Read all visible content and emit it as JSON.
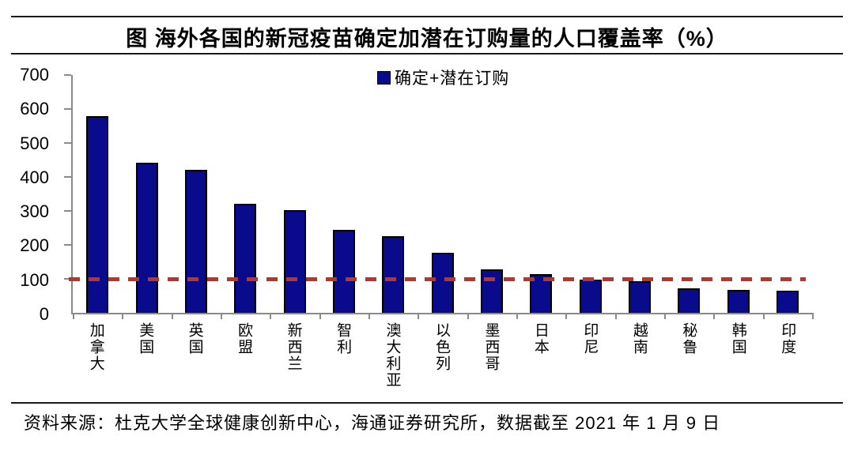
{
  "title": "图 海外各国的新冠疫苗确定加潜在订购量的人口覆盖率（%）",
  "legend": {
    "label": "确定+潜在订购"
  },
  "footer": {
    "source_note": "资料来源：杜克大学全球健康创新中心，海通证券研究所，数据截至 2021 年 1 月 9 日"
  },
  "colors": {
    "bar_fill": "#0a0a8c",
    "bar_border": "#000000",
    "reference_line": "#b5362b",
    "axis": "#8a8a8a",
    "rule": "#1a1a1a"
  },
  "chart_data": {
    "type": "bar",
    "title": "图 海外各国的新冠疫苗确定加潜在订购量的人口覆盖率（%）",
    "categories": [
      "加拿大",
      "美国",
      "英国",
      "欧盟",
      "新西兰",
      "智利",
      "澳大利亚",
      "以色列",
      "墨西哥",
      "日本",
      "印尼",
      "越南",
      "秘鲁",
      "韩国",
      "印度"
    ],
    "values": [
      580,
      443,
      420,
      320,
      303,
      245,
      225,
      177,
      128,
      115,
      97,
      92,
      72,
      68,
      64
    ],
    "legend": [
      "确定+潜在订购"
    ],
    "xlabel": "",
    "ylabel": "",
    "ylim": [
      0,
      700
    ],
    "yticks": [
      0,
      100,
      200,
      300,
      400,
      500,
      600,
      700
    ],
    "reference_line": 100,
    "grid": false,
    "legend_position": "top-center"
  }
}
